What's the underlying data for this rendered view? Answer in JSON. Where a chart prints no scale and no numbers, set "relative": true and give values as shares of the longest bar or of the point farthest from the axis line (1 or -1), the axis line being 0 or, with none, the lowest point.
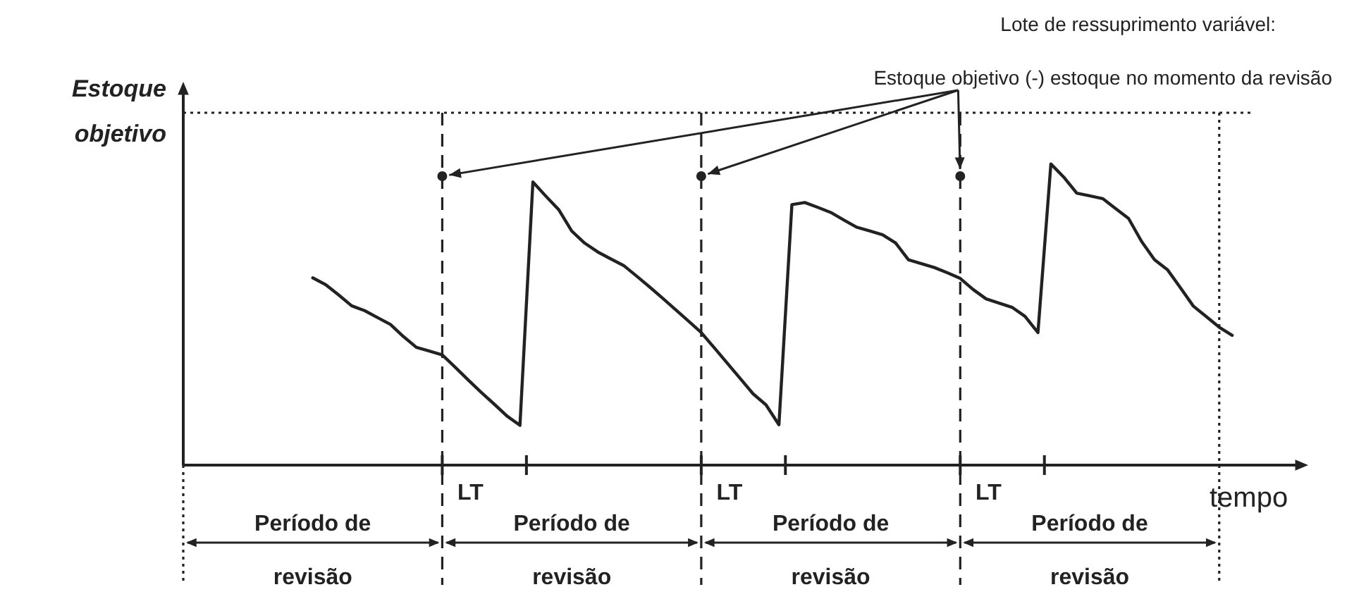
{
  "chart_data": {
    "type": "line",
    "relative": true,
    "legend": false,
    "marker": "none",
    "line_style": "solid",
    "xlabel": "tempo",
    "categories": [
      null,
      null,
      null,
      null,
      null,
      null,
      null,
      null,
      null,
      null,
      null,
      null,
      null,
      null,
      null,
      null,
      null,
      null,
      null,
      null,
      null,
      null,
      null,
      null,
      null,
      null,
      null,
      null,
      null,
      null,
      null,
      null,
      null,
      null,
      null,
      null,
      null,
      null,
      null,
      null,
      null,
      null,
      null,
      null,
      null,
      null,
      null,
      null,
      null,
      null,
      null,
      null,
      null,
      null,
      null,
      null,
      null,
      null,
      null,
      null,
      null,
      null,
      null,
      null,
      null,
      null,
      null,
      null,
      null,
      null,
      null,
      null,
      null,
      null,
      null,
      null,
      null,
      null,
      null,
      null,
      null,
      null,
      null,
      null,
      null,
      null,
      null
    ],
    "grid": "x",
    "annotations": [
      "Lote de ressuprimento variável:",
      "Estoque objetivo (-) estoque no momento da revisão",
      "LT",
      "LT",
      "LT",
      "Período de revisão",
      "Período de revisão",
      "Período de revisão",
      "Período de revisão"
    ],
    "series": [
      {
        "color": "#222222",
        "values": [
          null,
          null,
          null,
          null,
          null,
          null,
          null,
          null,
          null,
          null,
          0.622,
          0.599,
          0.565,
          0.529,
          0.513,
          0.49,
          0.467,
          0.427,
          0.391,
          0.379,
          0.366,
          0.325,
          0.283,
          0.242,
          0.203,
          0.163,
          0.132,
          0.94,
          0.893,
          0.848,
          0.777,
          0.737,
          0.708,
          0.685,
          0.663,
          0.628,
          0.592,
          0.555,
          0.517,
          0.479,
          0.44,
          0.39,
          0.339,
          0.288,
          0.237,
          0.2,
          0.134,
          0.865,
          0.872,
          0.856,
          0.839,
          0.814,
          0.79,
          0.778,
          0.765,
          0.738,
          0.682,
          0.669,
          0.656,
          0.639,
          0.62,
          0.583,
          0.552,
          0.538,
          0.524,
          0.494,
          0.44,
          1.0,
          0.956,
          0.903,
          0.894,
          0.885,
          0.852,
          0.819,
          0.743,
          0.682,
          0.649,
          0.589,
          0.528,
          0.493,
          0.458,
          0.431,
          null,
          null,
          null,
          null,
          null
        ]
      }
    ],
    "ref_lines": [
      {
        "axis": "y",
        "value": 1.17,
        "label": "Estoque objetivo",
        "line_style": "dotted"
      }
    ]
  }
}
